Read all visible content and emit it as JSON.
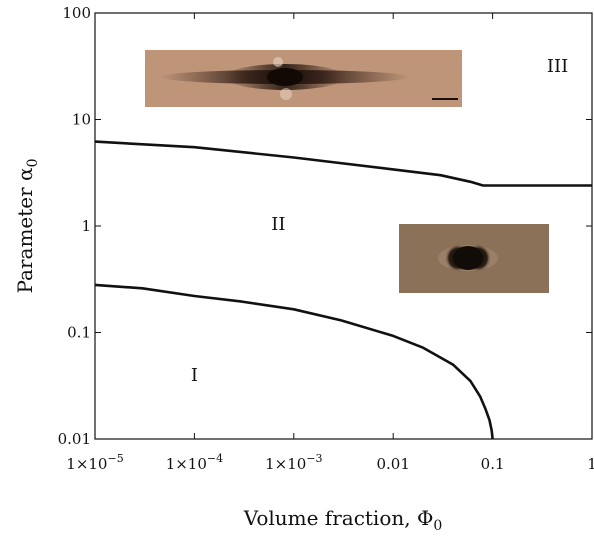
{
  "chart_data": {
    "type": "line",
    "xscale": "log",
    "yscale": "log",
    "xlim": [
      1e-05,
      1
    ],
    "ylim": [
      0.01,
      100
    ],
    "xlabel": "Volume fraction, Φ",
    "xlabel_sub": "0",
    "ylabel": "Parameter α",
    "ylabel_sub": "0",
    "grid": false,
    "x_ticks": [
      {
        "value": 1e-05,
        "mant": "1×10",
        "exp": "−5",
        "text": ""
      },
      {
        "value": 0.0001,
        "mant": "1×10",
        "exp": "−4",
        "text": ""
      },
      {
        "value": 0.001,
        "mant": "1×10",
        "exp": "−3",
        "text": ""
      },
      {
        "value": 0.01,
        "mant": "",
        "exp": "",
        "text": "0.01"
      },
      {
        "value": 0.1,
        "mant": "",
        "exp": "",
        "text": "0.1"
      },
      {
        "value": 1,
        "mant": "",
        "exp": "",
        "text": "1"
      }
    ],
    "y_ticks": [
      {
        "value": 100,
        "text": "100"
      },
      {
        "value": 10,
        "text": "10"
      },
      {
        "value": 1,
        "text": "1"
      },
      {
        "value": 0.1,
        "text": "0.1"
      },
      {
        "value": 0.01,
        "text": "0.01"
      }
    ],
    "series": [
      {
        "x": [
          1e-05,
          0.0001,
          0.001,
          0.01,
          0.03,
          0.06,
          0.08,
          0.1,
          0.2,
          0.5,
          1
        ],
        "y": [
          6.2,
          5.5,
          4.4,
          3.4,
          3.0,
          2.6,
          2.4,
          2.4,
          2.4,
          2.4,
          2.4
        ]
      },
      {
        "x": [
          1e-05,
          3e-05,
          0.0001,
          0.0003,
          0.001,
          0.003,
          0.01,
          0.02,
          0.04,
          0.06,
          0.075,
          0.085,
          0.093,
          0.098,
          0.1
        ],
        "y": [
          0.28,
          0.26,
          0.22,
          0.195,
          0.165,
          0.13,
          0.093,
          0.072,
          0.05,
          0.035,
          0.025,
          0.019,
          0.015,
          0.012,
          0.01
        ]
      }
    ],
    "region_labels": [
      {
        "text": "III",
        "x": 0.45,
        "y": 28
      },
      {
        "text": "II",
        "x": 0.0007,
        "y": 0.92
      },
      {
        "text": "I",
        "x": 0.0001,
        "y": 0.035
      }
    ],
    "inset_images": [
      {
        "name": "needle-crystal-micrograph",
        "bg": "#b98f73",
        "core": "#2a1812"
      },
      {
        "name": "lobed-particle-micrograph",
        "bg": "#8a7158",
        "core": "#1a110c"
      }
    ]
  }
}
